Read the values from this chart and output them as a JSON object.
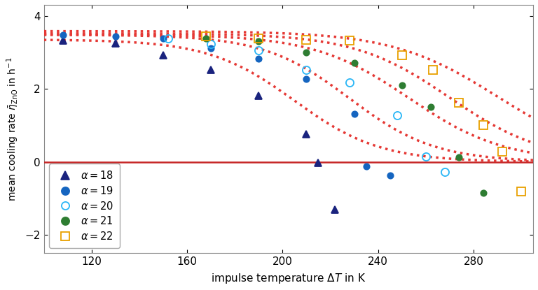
{
  "xlabel": "impulse temperature $\\Delta T$ in K",
  "ylabel": "mean cooling rate $\\bar{\\eta}_{\\mathrm{ZnO}}$ in h$^{-1}$",
  "xlim": [
    100,
    305
  ],
  "ylim": [
    -2.5,
    4.3
  ],
  "yticks": [
    -2,
    0,
    2,
    4
  ],
  "xticks": [
    120,
    160,
    200,
    240,
    280
  ],
  "series": [
    {
      "alpha": 18,
      "color": "#1a237e",
      "marker": "^",
      "markersize": 7,
      "filled": true,
      "x": [
        108,
        130,
        150,
        170,
        190,
        210,
        215,
        222
      ],
      "y": [
        3.33,
        3.25,
        2.93,
        2.52,
        1.82,
        0.75,
        -0.03,
        -1.3
      ],
      "curve_x_dense": true,
      "curve_params": [
        3.35,
        205,
        18
      ]
    },
    {
      "alpha": 19,
      "color": "#1565c0",
      "marker": "o",
      "markersize": 6,
      "filled": true,
      "x": [
        108,
        130,
        150,
        170,
        190,
        210,
        230,
        235,
        245
      ],
      "y": [
        3.48,
        3.44,
        3.38,
        3.12,
        2.82,
        2.27,
        1.32,
        -0.13,
        -0.38
      ],
      "curve_params": [
        3.48,
        228,
        18
      ]
    },
    {
      "alpha": 20,
      "color": "#29b6f6",
      "marker": "o",
      "markersize": 8,
      "filled": false,
      "x": [
        152,
        170,
        190,
        210,
        228,
        248,
        260,
        268
      ],
      "y": [
        3.38,
        3.22,
        3.06,
        2.52,
        2.18,
        1.27,
        0.15,
        -0.28
      ],
      "curve_params": [
        3.49,
        253,
        20
      ]
    },
    {
      "alpha": 21,
      "color": "#2e7d32",
      "marker": "o",
      "markersize": 6,
      "filled": true,
      "x": [
        168,
        190,
        210,
        230,
        250,
        262,
        274,
        284
      ],
      "y": [
        3.38,
        3.3,
        3.0,
        2.72,
        2.1,
        1.5,
        0.13,
        -0.85
      ],
      "curve_params": [
        3.52,
        270,
        20
      ]
    },
    {
      "alpha": 22,
      "color": "#e8a000",
      "marker": "s",
      "markersize": 8,
      "filled": false,
      "x": [
        168,
        190,
        210,
        228,
        250,
        263,
        274,
        284,
        292,
        300
      ],
      "y": [
        3.43,
        3.38,
        3.35,
        3.32,
        2.93,
        2.52,
        1.62,
        1.0,
        0.28,
        -0.82
      ],
      "curve_params": [
        3.58,
        290,
        22
      ]
    }
  ],
  "hline_color": "#c62828",
  "curve_color": "#e53935",
  "background_color": "#ffffff"
}
